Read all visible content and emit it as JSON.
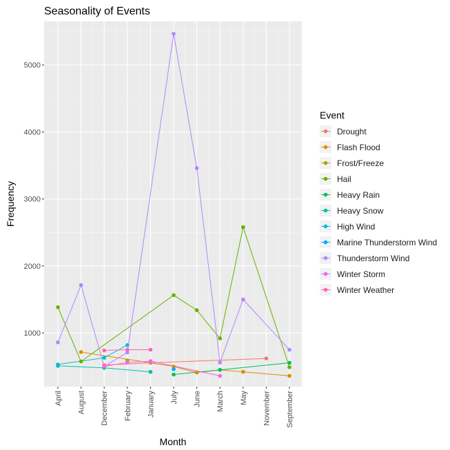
{
  "chart_data": {
    "type": "line",
    "title": "Seasonality of Events",
    "xlabel": "Month",
    "ylabel": "Frequency",
    "categories": [
      "April",
      "August",
      "December",
      "February",
      "January",
      "July",
      "June",
      "March",
      "May",
      "November",
      "September"
    ],
    "ylim": [
      200,
      5650
    ],
    "yticks": [
      1000,
      2000,
      3000,
      4000,
      5000
    ],
    "grid": true,
    "legend_title": "Event",
    "legend_position": "right",
    "series": [
      {
        "name": "Drought",
        "color": "#F8766D",
        "values": [
          null,
          null,
          520,
          null,
          555,
          null,
          null,
          null,
          null,
          620,
          null
        ]
      },
      {
        "name": "Flash Flood",
        "color": "#DB8E00",
        "values": [
          null,
          715,
          null,
          null,
          null,
          500,
          410,
          450,
          420,
          null,
          360
        ]
      },
      {
        "name": "Frost/Freeze",
        "color": "#AEA200",
        "values": [
          null,
          null,
          null,
          590,
          null,
          null,
          null,
          null,
          null,
          null,
          null
        ]
      },
      {
        "name": "Hail",
        "color": "#64B200",
        "values": [
          1385,
          575,
          null,
          null,
          null,
          1565,
          1340,
          920,
          2580,
          null,
          490
        ]
      },
      {
        "name": "Heavy Rain",
        "color": "#00BD5C",
        "values": [
          null,
          null,
          null,
          null,
          null,
          380,
          null,
          450,
          null,
          null,
          555
        ]
      },
      {
        "name": "Heavy Snow",
        "color": "#00C1A7",
        "values": [
          510,
          null,
          480,
          null,
          420,
          null,
          null,
          null,
          null,
          null,
          null
        ]
      },
      {
        "name": "High Wind",
        "color": "#00BADE",
        "values": [
          530,
          null,
          630,
          820,
          null,
          null,
          null,
          null,
          null,
          null,
          null
        ]
      },
      {
        "name": "Marine Thunderstorm Wind",
        "color": "#00A6FF",
        "values": [
          null,
          null,
          null,
          null,
          null,
          460,
          null,
          null,
          null,
          null,
          null
        ]
      },
      {
        "name": "Thunderstorm Wind",
        "color": "#B385FF",
        "values": [
          860,
          1715,
          500,
          710,
          null,
          5465,
          3460,
          560,
          1500,
          null,
          750
        ]
      },
      {
        "name": "Winter Storm",
        "color": "#EF67EB",
        "values": [
          null,
          null,
          500,
          560,
          580,
          null,
          null,
          360,
          null,
          null,
          null
        ]
      },
      {
        "name": "Winter Weather",
        "color": "#FF63B6",
        "values": [
          null,
          null,
          740,
          750,
          750,
          null,
          null,
          null,
          null,
          null,
          null
        ]
      }
    ]
  }
}
